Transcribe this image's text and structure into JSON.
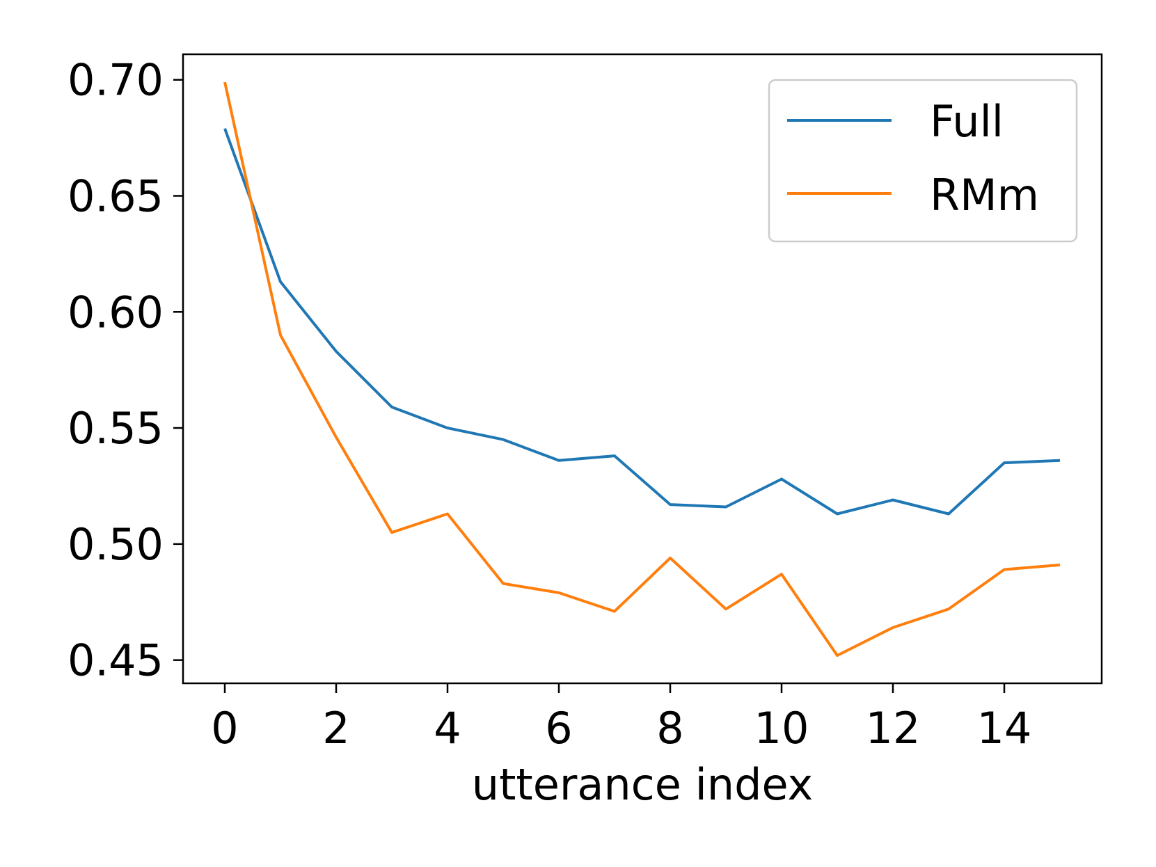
{
  "chart_data": {
    "type": "line",
    "title": "",
    "xlabel": "utterance index",
    "ylabel": "",
    "xlim": [
      -0.75,
      15.75
    ],
    "ylim": [
      0.44,
      0.711
    ],
    "xticks": [
      0,
      2,
      4,
      6,
      8,
      10,
      12,
      14
    ],
    "xtick_labels": [
      "0",
      "2",
      "4",
      "6",
      "8",
      "10",
      "12",
      "14"
    ],
    "yticks": [
      0.45,
      0.5,
      0.55,
      0.6,
      0.65,
      0.7
    ],
    "ytick_labels": [
      "0.45",
      "0.50",
      "0.55",
      "0.60",
      "0.65",
      "0.70"
    ],
    "grid": false,
    "legend_position": "top-right",
    "x": [
      0,
      1,
      2,
      3,
      4,
      5,
      6,
      7,
      8,
      9,
      10,
      11,
      12,
      13,
      14,
      15
    ],
    "series": [
      {
        "name": "Full",
        "color": "#1f77b4",
        "values": [
          0.679,
          0.613,
          0.583,
          0.559,
          0.55,
          0.545,
          0.536,
          0.538,
          0.517,
          0.516,
          0.528,
          0.513,
          0.519,
          0.513,
          0.535,
          0.536
        ]
      },
      {
        "name": "RMm",
        "color": "#ff7f0e",
        "values": [
          0.699,
          0.59,
          0.546,
          0.505,
          0.513,
          0.483,
          0.479,
          0.471,
          0.494,
          0.472,
          0.487,
          0.452,
          0.464,
          0.472,
          0.489,
          0.491
        ]
      }
    ]
  }
}
